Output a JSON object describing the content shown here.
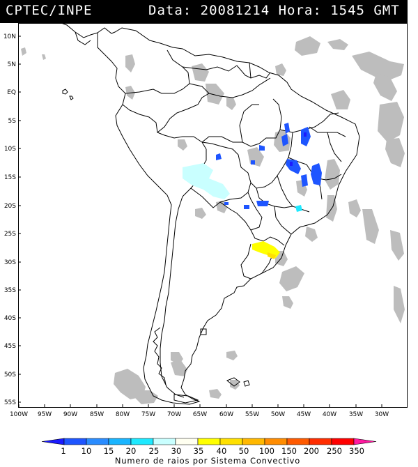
{
  "header": {
    "left": "CPTEC/INPE",
    "right": "Data: 20081214 Hora: 1545 GMT",
    "bg": "#000000",
    "fg": "#ffffff"
  },
  "map": {
    "lat_labels": [
      "10N",
      "5N",
      "EQ",
      "5S",
      "10S",
      "15S",
      "20S",
      "25S",
      "30S",
      "35S",
      "40S",
      "45S",
      "50S",
      "55S"
    ],
    "lon_labels": [
      "100W",
      "95W",
      "90W",
      "85W",
      "80W",
      "75W",
      "70W",
      "65W",
      "60W",
      "55W",
      "50W",
      "45W",
      "40W",
      "35W",
      "30W"
    ],
    "cloud_color": "#bdbdbd",
    "line_color": "#000000"
  },
  "colorbar": {
    "labels": [
      "1",
      "10",
      "15",
      "20",
      "25",
      "30",
      "35",
      "40",
      "50",
      "100",
      "150",
      "200",
      "250",
      "350"
    ],
    "colors": [
      "#1b1bff",
      "#1e55ff",
      "#2a8cff",
      "#19b5ff",
      "#1ee9ff",
      "#c9ffff",
      "#fffff0",
      "#ffff00",
      "#ffe000",
      "#ffb800",
      "#ff8c00",
      "#ff5a00",
      "#ff2d00",
      "#ff0000",
      "#ff1aa0"
    ],
    "caption": "Numero de raios por Sistema Convectivo"
  }
}
